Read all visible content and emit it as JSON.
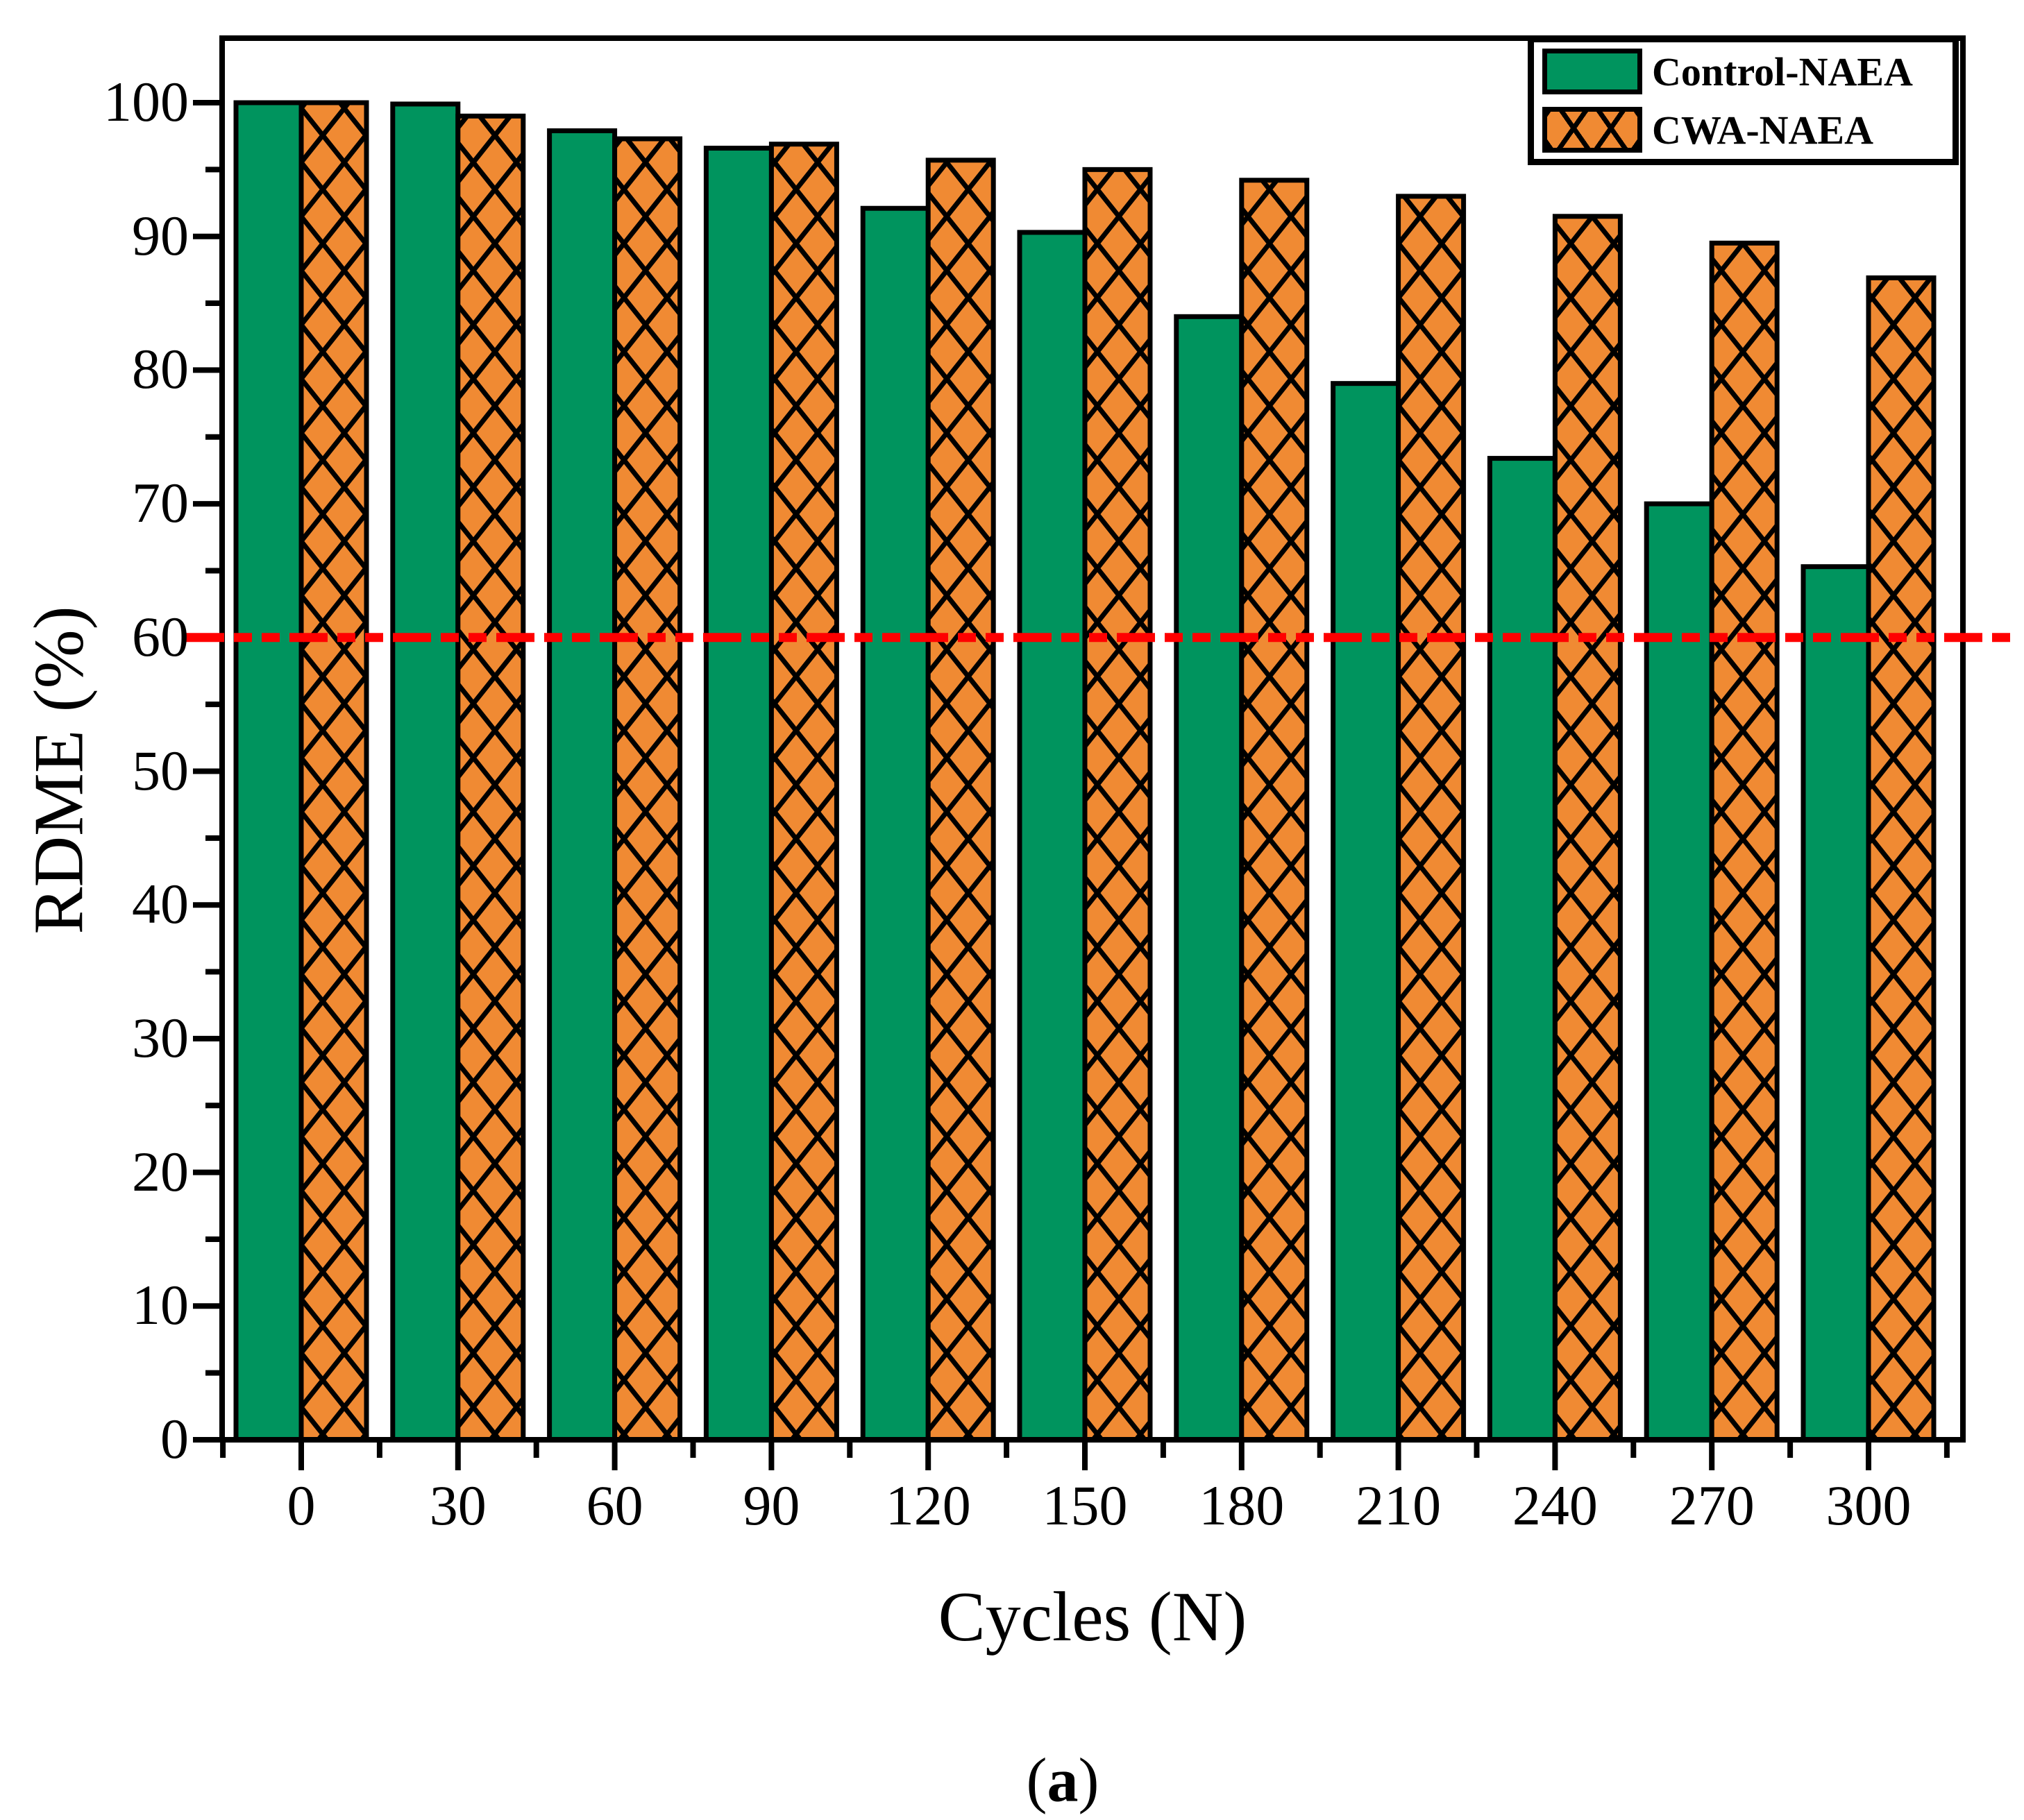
{
  "figure": {
    "caption_open": "(",
    "caption_letter": "a",
    "caption_close": ")"
  },
  "chart_data": {
    "type": "bar",
    "title": "",
    "xlabel": "Cycles (N)",
    "ylabel": "RDME (%)",
    "categories": [
      0,
      30,
      60,
      90,
      120,
      150,
      180,
      210,
      240,
      270,
      300
    ],
    "series": [
      {
        "name": "Control-NAEA",
        "color": "#00945e",
        "pattern": "solid",
        "values": [
          100,
          99.9,
          97.9,
          96.6,
          92.1,
          90.3,
          84.0,
          79.0,
          73.4,
          70.0,
          65.3
        ]
      },
      {
        "name": "CWA-NAEA",
        "color": "#f08a33",
        "pattern": "crosshatch",
        "values": [
          100,
          99.0,
          97.3,
          96.9,
          95.7,
          95.0,
          94.2,
          93.0,
          91.5,
          89.5,
          86.9
        ]
      }
    ],
    "threshold_line": {
      "value": 60,
      "color": "#ff0000",
      "style": "dash-dot-dot"
    },
    "ylim": [
      0,
      105
    ],
    "ytick_step": 10,
    "ytick_labels": [
      "0",
      "10",
      "20",
      "30",
      "40",
      "50",
      "60",
      "70",
      "80",
      "90",
      "100"
    ],
    "xtick_labels": [
      "0",
      "30",
      "60",
      "90",
      "120",
      "150",
      "180",
      "210",
      "240",
      "270",
      "300"
    ],
    "legend_position": "top-right",
    "grid": false,
    "bar_edge_color": "#000000",
    "frame_color": "#000000"
  }
}
